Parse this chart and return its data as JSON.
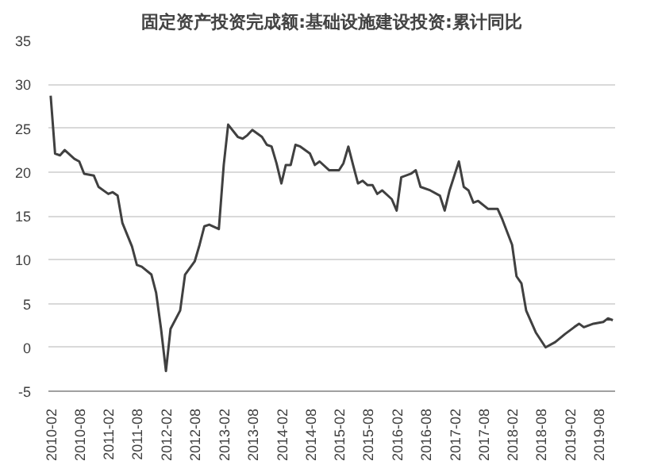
{
  "chart_data": {
    "type": "line",
    "title": "固定资产投资完成额:基础设施建设投资:累计同比",
    "x": [
      "2010-02",
      "2010-03",
      "2010-04",
      "2010-05",
      "2010-07",
      "2010-08",
      "2010-09",
      "2010-11",
      "2010-12",
      "2011-02",
      "2011-03",
      "2011-04",
      "2011-05",
      "2011-07",
      "2011-08",
      "2011-09",
      "2011-11",
      "2011-12",
      "2012-01",
      "2012-02",
      "2012-03",
      "2012-05",
      "2012-06",
      "2012-08",
      "2012-09",
      "2012-10",
      "2012-11",
      "2013-01",
      "2013-02",
      "2013-03",
      "2013-05",
      "2013-06",
      "2013-07",
      "2013-08",
      "2013-10",
      "2013-11",
      "2013-12",
      "2014-01",
      "2014-02",
      "2014-03",
      "2014-04",
      "2014-05",
      "2014-06",
      "2014-08",
      "2014-09",
      "2014-10",
      "2014-12",
      "2015-02",
      "2015-03",
      "2015-04",
      "2015-05",
      "2015-06",
      "2015-07",
      "2015-08",
      "2015-09",
      "2015-10",
      "2015-11",
      "2016-01",
      "2016-02",
      "2016-03",
      "2016-05",
      "2016-06",
      "2016-07",
      "2016-09",
      "2016-11",
      "2016-12",
      "2017-01",
      "2017-03",
      "2017-04",
      "2017-05",
      "2017-06",
      "2017-07",
      "2017-09",
      "2017-11",
      "2017-12",
      "2018-02",
      "2018-03",
      "2018-04",
      "2018-05",
      "2018-07",
      "2018-09",
      "2018-11",
      "2019-01",
      "2019-03",
      "2019-04",
      "2019-05",
      "2019-07",
      "2019-09",
      "2019-10",
      "2019-11"
    ],
    "series": [
      {
        "color": "#404040",
        "values": [
          28.7,
          22.1,
          21.9,
          22.5,
          21.5,
          21.2,
          19.8,
          19.6,
          18.3,
          17.5,
          17.7,
          17.3,
          14.2,
          11.5,
          9.4,
          9.2,
          8.3,
          6.2,
          2.1,
          -2.7,
          2.1,
          4.2,
          8.3,
          9.8,
          11.7,
          13.8,
          14.0,
          13.5,
          20.8,
          25.4,
          24.0,
          23.8,
          24.2,
          24.8,
          24.0,
          23.1,
          22.9,
          21.0,
          18.7,
          20.8,
          20.8,
          23.1,
          22.9,
          22.1,
          20.8,
          21.2,
          20.2,
          20.2,
          21.0,
          22.9,
          20.8,
          18.7,
          19.0,
          18.5,
          18.5,
          17.5,
          17.9,
          16.9,
          15.6,
          19.4,
          19.8,
          20.2,
          18.3,
          17.9,
          17.3,
          15.6,
          17.9,
          21.2,
          18.3,
          17.9,
          16.5,
          16.7,
          15.8,
          15.8,
          14.6,
          11.7,
          8.1,
          7.3,
          4.2,
          1.7,
          0.0,
          0.6,
          1.5,
          2.3,
          2.7,
          2.3,
          2.7,
          2.9,
          3.3,
          3.1
        ]
      }
    ],
    "xlim": [
      "2010-02",
      "2019-11"
    ],
    "xticks": [
      "2010-02",
      "2010-08",
      "2011-02",
      "2011-08",
      "2012-02",
      "2012-08",
      "2013-02",
      "2013-08",
      "2014-02",
      "2014-08",
      "2015-02",
      "2015-08",
      "2016-02",
      "2016-08",
      "2017-02",
      "2017-08",
      "2018-02",
      "2018-08",
      "2019-02",
      "2019-08"
    ],
    "ylim": [
      -5,
      35
    ],
    "yticks": [
      -5,
      0,
      5,
      10,
      15,
      20,
      25,
      30,
      35
    ],
    "grid": "y",
    "marker": "none",
    "line_style": "solid"
  }
}
